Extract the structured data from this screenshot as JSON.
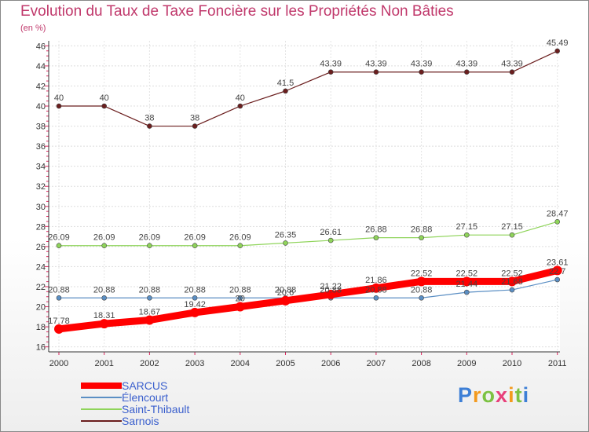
{
  "chart_data": {
    "type": "line",
    "title": "Evolution du Taux de Taxe Foncière sur les Propriétés Non Bâties",
    "unit_label": "(en %)",
    "xlabel": "",
    "ylabel": "(en %)",
    "categories": [
      "2000",
      "2001",
      "2002",
      "2003",
      "2004",
      "2005",
      "2006",
      "2007",
      "2008",
      "2009",
      "2010",
      "2011"
    ],
    "ylim": [
      15.5,
      46.5
    ],
    "yticks": [
      16,
      18,
      20,
      22,
      24,
      26,
      28,
      30,
      32,
      34,
      36,
      38,
      40,
      42,
      44,
      46
    ],
    "series": [
      {
        "name": "Sarnois",
        "color": "#6b1e1e",
        "values": [
          40,
          40,
          38,
          38,
          40,
          41.5,
          43.39,
          43.39,
          43.39,
          43.39,
          43.39,
          45.49
        ],
        "labels": [
          "40",
          "40",
          "38",
          "38",
          "40",
          "41.5",
          "43.39",
          "43.39",
          "43.39",
          "43.39",
          "43.39",
          "45.49"
        ]
      },
      {
        "name": "Saint-Thibault",
        "color": "#8fd45a",
        "values": [
          26.09,
          26.09,
          26.09,
          26.09,
          26.09,
          26.35,
          26.61,
          26.88,
          26.88,
          27.15,
          27.15,
          28.47
        ],
        "labels": [
          "26.09",
          "26.09",
          "26.09",
          "26.09",
          "26.09",
          "26.35",
          "26.61",
          "26.88",
          "26.88",
          "27.15",
          "27.15",
          "28.47"
        ]
      },
      {
        "name": "Élencourt",
        "color": "#5b8fc4",
        "values": [
          20.88,
          20.88,
          20.88,
          20.88,
          20.88,
          20.88,
          20.88,
          20.88,
          20.88,
          21.44,
          21.68,
          22.7
        ],
        "labels": [
          "20.88",
          "20.88",
          "20.88",
          "20.88",
          "20.88",
          "20.88",
          "20.88",
          "20.88",
          "20.88",
          "21.44",
          "21.68",
          "22.7"
        ]
      },
      {
        "name": "SARCUS",
        "color": "#ff0000",
        "values": [
          17.78,
          18.31,
          18.67,
          19.42,
          20,
          20.6,
          21.22,
          21.86,
          22.52,
          22.52,
          22.52,
          23.61
        ],
        "labels": [
          "17.78",
          "18.31",
          "18.67",
          "19.42",
          "20",
          "20.6",
          "21.22",
          "21.86",
          "22.52",
          "22.52",
          "22.52",
          "23.61"
        ]
      }
    ],
    "legend": [
      "SARCUS",
      "Élencourt",
      "Saint-Thibault",
      "Sarnois"
    ],
    "legend_colors": [
      "#ff0000",
      "#5b8fc4",
      "#8fd45a",
      "#6b1e1e"
    ]
  },
  "brand": {
    "letters": [
      "P",
      "r",
      "o",
      "x",
      "i",
      "t",
      "i"
    ],
    "colors": [
      "#3d7fd6",
      "#f39a1e",
      "#7cc242",
      "#e8407a",
      "#f39a1e",
      "#7cc242",
      "#3d7fd6"
    ]
  }
}
